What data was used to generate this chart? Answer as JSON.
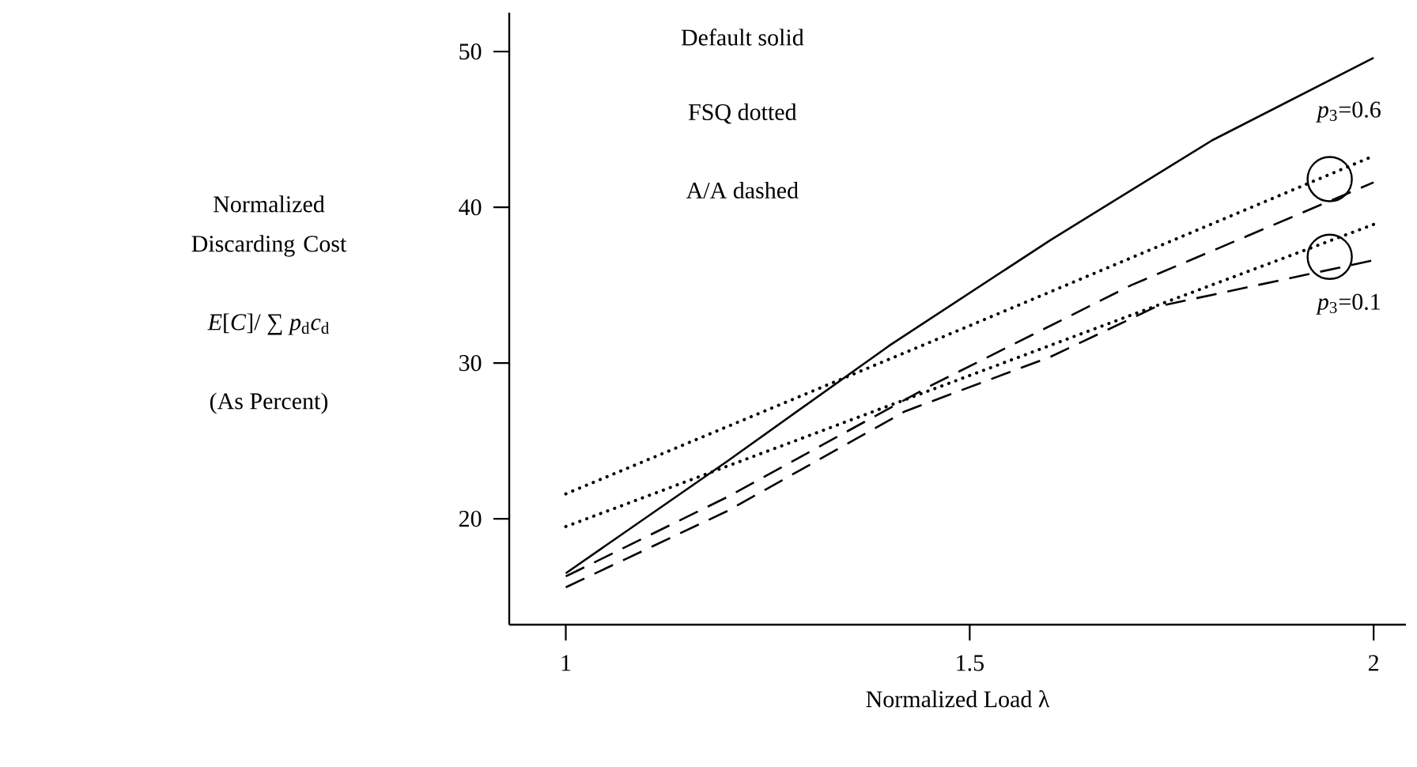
{
  "chart_data": {
    "type": "line",
    "xlabel": "Normalized Load λ",
    "ylabel": "Normalized Discarding Cost",
    "annotations": [
      "Default solid",
      "FSQ dotted",
      "A/A dashed",
      "*E*[*C*]/ ∑ *p*$_{d}$*c*$_{d}$",
      "(As Percent)",
      {
        "text": "*p*$_{3}$=0.6",
        "x": 2,
        "y": 43.3
      },
      {
        "text": "*p*$_{3}$=0.1",
        "x": 2,
        "y": 36.6
      }
    ],
    "xlim": [
      0.93,
      2.04
    ],
    "ylim": [
      13.2,
      52.5
    ],
    "xticks": [
      1,
      1.5,
      2
    ],
    "yticks": [
      20,
      30,
      40,
      50
    ],
    "grid": false,
    "legend": false,
    "marker": "none",
    "series": [
      {
        "color": "#000000",
        "line_style": "solid",
        "x": [
          1,
          1.2,
          1.4,
          1.6,
          1.8,
          2
        ],
        "values": [
          16.5,
          23.7,
          31.1,
          37.9,
          44.3,
          49.6
        ]
      },
      {
        "color": "#000000",
        "line_style": "dotted",
        "x": [
          1,
          1.5,
          2
        ],
        "values": [
          21.6,
          32.4,
          43.3
        ]
      },
      {
        "color": "#000000",
        "line_style": "dotted",
        "x": [
          1,
          1.5,
          2
        ],
        "values": [
          19.5,
          29.2,
          38.9
        ]
      },
      {
        "color": "#000000",
        "line_style": "dashed",
        "x": [
          1,
          1.2,
          1.45,
          1.7,
          2
        ],
        "values": [
          16.3,
          21.4,
          28.5,
          35.0,
          41.6
        ]
      },
      {
        "color": "#000000",
        "line_style": "dashed",
        "x": [
          1,
          1.2,
          1.42,
          1.6,
          1.73,
          2
        ],
        "values": [
          15.6,
          20.5,
          26.9,
          30.4,
          33.6,
          36.6
        ]
      }
    ]
  }
}
